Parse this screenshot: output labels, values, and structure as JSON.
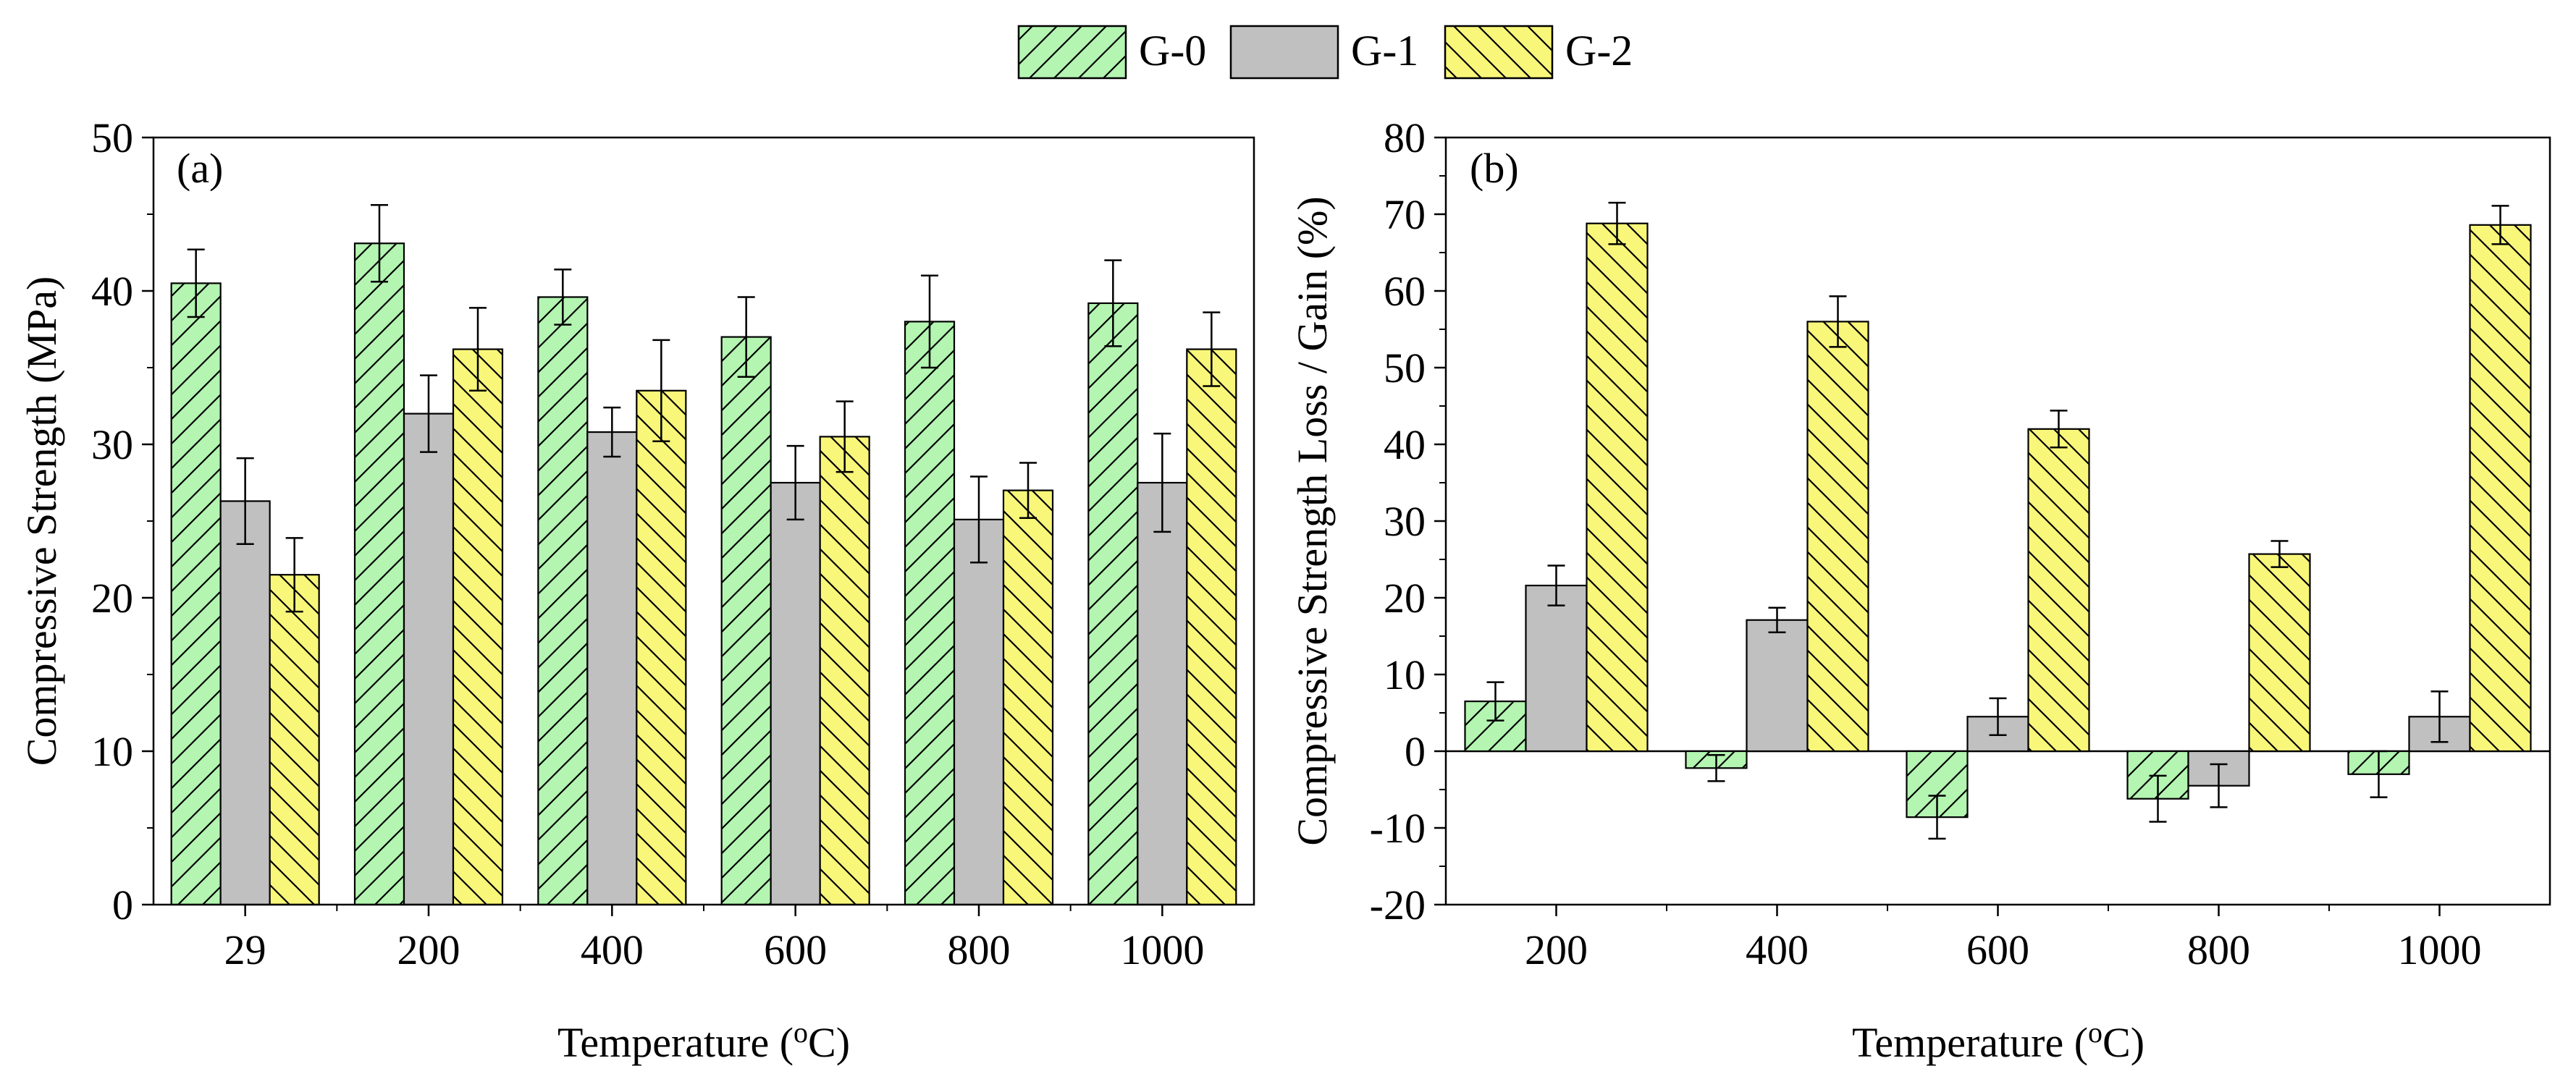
{
  "legend": {
    "position": "top-center",
    "entries": [
      {
        "name": "G-0",
        "color": "#b3f5b1",
        "hatch": "forward-diagonal"
      },
      {
        "name": "G-1",
        "color": "#c0c0c0",
        "hatch": "none"
      },
      {
        "name": "G-2",
        "color": "#f9f77a",
        "hatch": "back-diagonal"
      }
    ]
  },
  "chart_data": [
    {
      "panel_label": "(a)",
      "type": "bar",
      "title": "",
      "xlabel": "Temperature (",
      "xlabel_sup": "o",
      "xlabel_end": "C)",
      "ylabel": "Compressive Strength (MPa)",
      "ylim": [
        0,
        50
      ],
      "yticks": [
        0,
        10,
        20,
        30,
        40,
        50
      ],
      "categories": [
        "29",
        "200",
        "400",
        "600",
        "800",
        "1000"
      ],
      "series": [
        {
          "name": "G-0",
          "values": [
            40.5,
            43.1,
            39.6,
            37.0,
            38.0,
            39.2
          ],
          "errors": [
            2.2,
            2.5,
            1.8,
            2.6,
            3.0,
            2.8
          ]
        },
        {
          "name": "G-1",
          "values": [
            26.3,
            32.0,
            30.8,
            27.5,
            25.1,
            27.5
          ],
          "errors": [
            2.8,
            2.5,
            1.6,
            2.4,
            2.8,
            3.2
          ]
        },
        {
          "name": "G-2",
          "values": [
            21.5,
            36.2,
            33.5,
            30.5,
            27.0,
            36.2
          ],
          "errors": [
            2.4,
            2.7,
            3.3,
            2.3,
            1.8,
            2.4
          ]
        }
      ]
    },
    {
      "panel_label": "(b)",
      "type": "bar",
      "title": "",
      "xlabel": "Temperature (",
      "xlabel_sup": "o",
      "xlabel_end": "C)",
      "ylabel": "Compressive Strength Loss / Gain (%)",
      "ylim": [
        -20,
        80
      ],
      "yticks": [
        -20,
        -10,
        0,
        10,
        20,
        30,
        40,
        50,
        60,
        70,
        80
      ],
      "categories": [
        "200",
        "400",
        "600",
        "800",
        "1000"
      ],
      "series": [
        {
          "name": "G-0",
          "values": [
            6.5,
            -2.2,
            -8.6,
            -6.2,
            -3.0
          ],
          "errors": [
            2.5,
            1.7,
            2.8,
            3.0,
            3.0
          ]
        },
        {
          "name": "G-1",
          "values": [
            21.6,
            17.1,
            4.5,
            -4.5,
            4.5
          ],
          "errors": [
            2.6,
            1.6,
            2.4,
            2.8,
            3.3
          ]
        },
        {
          "name": "G-2",
          "values": [
            68.8,
            56.0,
            42.0,
            25.7,
            68.6
          ],
          "errors": [
            2.7,
            3.3,
            2.4,
            1.7,
            2.5
          ]
        }
      ]
    }
  ]
}
